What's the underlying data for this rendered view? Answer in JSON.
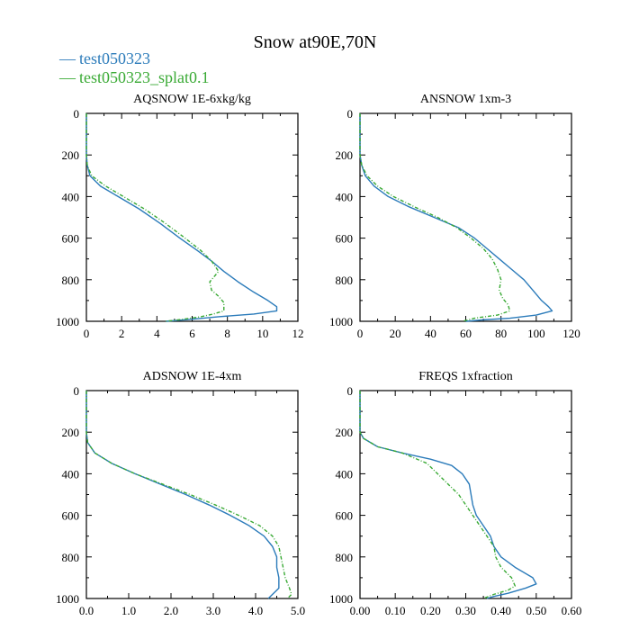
{
  "figure": {
    "title": "Snow at90E,70N",
    "legend": [
      {
        "label": "test050323",
        "color": "#2b7bba"
      },
      {
        "label": "test050323_splat0.1",
        "color": "#3aaa35"
      }
    ],
    "legend_marker": "—"
  },
  "chart_data": [
    {
      "type": "line",
      "title": "AQSNOW  1E-6xkg/kg",
      "xlabel": "",
      "ylabel": "",
      "xlim": [
        0,
        12
      ],
      "ylim": [
        1000,
        0
      ],
      "xticks": [
        0,
        2,
        4,
        6,
        8,
        10,
        12
      ],
      "xtick_labels": [
        "0",
        "2",
        "4",
        "6",
        "8",
        "10",
        "12"
      ],
      "yticks": [
        0,
        200,
        400,
        600,
        800,
        1000
      ],
      "ytick_labels": [
        "0",
        "200",
        "400",
        "600",
        "800",
        "1000"
      ],
      "series": [
        {
          "name": "test050323",
          "color": "#2b7bba",
          "dash": "",
          "points": [
            [
              0,
              0
            ],
            [
              0,
              100
            ],
            [
              0,
              200
            ],
            [
              0.05,
              250
            ],
            [
              0.2,
              300
            ],
            [
              0.8,
              350
            ],
            [
              1.8,
              400
            ],
            [
              3,
              460
            ],
            [
              4.2,
              530
            ],
            [
              5.3,
              600
            ],
            [
              6.3,
              660
            ],
            [
              7.1,
              710
            ],
            [
              7.8,
              760
            ],
            [
              8.6,
              810
            ],
            [
              9.5,
              860
            ],
            [
              10.3,
              900
            ],
            [
              10.8,
              930
            ],
            [
              10.8,
              950
            ],
            [
              9.5,
              965
            ],
            [
              7.5,
              978
            ],
            [
              6,
              990
            ],
            [
              4.5,
              1000
            ]
          ]
        },
        {
          "name": "test050323_splat0.1",
          "color": "#3aaa35",
          "dash": "4,2,1,2",
          "points": [
            [
              0,
              0
            ],
            [
              0,
              100
            ],
            [
              0,
              200
            ],
            [
              0.05,
              250
            ],
            [
              0.3,
              300
            ],
            [
              1.1,
              350
            ],
            [
              2.1,
              400
            ],
            [
              3.3,
              460
            ],
            [
              4.5,
              530
            ],
            [
              5.6,
              600
            ],
            [
              6.5,
              660
            ],
            [
              7.1,
              710
            ],
            [
              7.5,
              760
            ],
            [
              7.2,
              790
            ],
            [
              7,
              810
            ],
            [
              7.1,
              850
            ],
            [
              7.5,
              880
            ],
            [
              7.8,
              910
            ],
            [
              7.8,
              950
            ],
            [
              7.2,
              965
            ],
            [
              6.5,
              978
            ],
            [
              5.5,
              990
            ],
            [
              4.5,
              1000
            ]
          ]
        }
      ]
    },
    {
      "type": "line",
      "title": "ANSNOW  1xm-3",
      "xlabel": "",
      "ylabel": "",
      "xlim": [
        0,
        120
      ],
      "ylim": [
        1000,
        0
      ],
      "xticks": [
        0,
        20,
        40,
        60,
        80,
        100,
        120
      ],
      "xtick_labels": [
        "0",
        "20",
        "40",
        "60",
        "80",
        "100",
        "120"
      ],
      "yticks": [
        0,
        200,
        400,
        600,
        800,
        1000
      ],
      "ytick_labels": [
        "0",
        "200",
        "400",
        "600",
        "800",
        "1000"
      ],
      "series": [
        {
          "name": "test050323",
          "color": "#2b7bba",
          "dash": "",
          "points": [
            [
              0,
              0
            ],
            [
              0,
              100
            ],
            [
              0,
              200
            ],
            [
              1,
              250
            ],
            [
              3,
              300
            ],
            [
              8,
              350
            ],
            [
              16,
              400
            ],
            [
              28,
              450
            ],
            [
              42,
              500
            ],
            [
              56,
              550
            ],
            [
              65,
              600
            ],
            [
              72,
              650
            ],
            [
              79,
              700
            ],
            [
              86,
              750
            ],
            [
              93,
              800
            ],
            [
              98,
              850
            ],
            [
              103,
              900
            ],
            [
              107,
              930
            ],
            [
              109,
              950
            ],
            [
              100,
              970
            ],
            [
              85,
              985
            ],
            [
              70,
              993
            ],
            [
              60,
              1000
            ]
          ]
        },
        {
          "name": "test050323_splat0.1",
          "color": "#3aaa35",
          "dash": "4,2,1,2",
          "points": [
            [
              0,
              0
            ],
            [
              0,
              100
            ],
            [
              0,
              200
            ],
            [
              1,
              250
            ],
            [
              4,
              300
            ],
            [
              10,
              350
            ],
            [
              19,
              400
            ],
            [
              31,
              450
            ],
            [
              44,
              500
            ],
            [
              55,
              550
            ],
            [
              63,
              600
            ],
            [
              70,
              650
            ],
            [
              75,
              700
            ],
            [
              78,
              750
            ],
            [
              80,
              800
            ],
            [
              79,
              850
            ],
            [
              81,
              890
            ],
            [
              84,
              920
            ],
            [
              85,
              950
            ],
            [
              78,
              970
            ],
            [
              65,
              985
            ],
            [
              58,
              1000
            ]
          ]
        }
      ]
    },
    {
      "type": "line",
      "title": "ADSNOW  1E-4xm",
      "xlabel": "",
      "ylabel": "",
      "xlim": [
        0,
        5
      ],
      "ylim": [
        1000,
        0
      ],
      "xticks": [
        0,
        1,
        2,
        3,
        4,
        5
      ],
      "xtick_labels": [
        "0.0",
        "1.0",
        "2.0",
        "3.0",
        "4.0",
        "5.0"
      ],
      "yticks": [
        0,
        200,
        400,
        600,
        800,
        1000
      ],
      "ytick_labels": [
        "0",
        "200",
        "400",
        "600",
        "800",
        "1000"
      ],
      "series": [
        {
          "name": "test050323",
          "color": "#2b7bba",
          "dash": "",
          "points": [
            [
              0,
              0
            ],
            [
              0,
              100
            ],
            [
              0,
              200
            ],
            [
              0.03,
              250
            ],
            [
              0.2,
              300
            ],
            [
              0.6,
              350
            ],
            [
              1.15,
              400
            ],
            [
              1.75,
              450
            ],
            [
              2.35,
              500
            ],
            [
              2.9,
              550
            ],
            [
              3.4,
              600
            ],
            [
              3.85,
              650
            ],
            [
              4.2,
              700
            ],
            [
              4.4,
              750
            ],
            [
              4.5,
              800
            ],
            [
              4.5,
              850
            ],
            [
              4.55,
              900
            ],
            [
              4.55,
              950
            ],
            [
              4.4,
              980
            ],
            [
              4.3,
              1000
            ]
          ]
        },
        {
          "name": "test050323_splat0.1",
          "color": "#3aaa35",
          "dash": "4,2,1,2",
          "points": [
            [
              0,
              0
            ],
            [
              0,
              100
            ],
            [
              0,
              200
            ],
            [
              0.03,
              250
            ],
            [
              0.2,
              300
            ],
            [
              0.6,
              350
            ],
            [
              1.15,
              400
            ],
            [
              1.8,
              450
            ],
            [
              2.45,
              500
            ],
            [
              3.05,
              550
            ],
            [
              3.6,
              600
            ],
            [
              4.1,
              650
            ],
            [
              4.4,
              700
            ],
            [
              4.55,
              750
            ],
            [
              4.6,
              800
            ],
            [
              4.65,
              850
            ],
            [
              4.7,
              900
            ],
            [
              4.8,
              950
            ],
            [
              4.85,
              980
            ],
            [
              4.75,
              1000
            ]
          ]
        }
      ]
    },
    {
      "type": "line",
      "title": "FREQS  1xfraction",
      "xlabel": "",
      "ylabel": "",
      "xlim": [
        0,
        0.6
      ],
      "ylim": [
        1000,
        0
      ],
      "xticks": [
        0,
        0.1,
        0.2,
        0.3,
        0.4,
        0.5,
        0.6
      ],
      "xtick_labels": [
        "0.00",
        "0.10",
        "0.20",
        "0.30",
        "0.40",
        "0.50",
        "0.60"
      ],
      "yticks": [
        0,
        200,
        400,
        600,
        800,
        1000
      ],
      "ytick_labels": [
        "0",
        "200",
        "400",
        "600",
        "800",
        "1000"
      ],
      "series": [
        {
          "name": "test050323",
          "color": "#2b7bba",
          "dash": "",
          "points": [
            [
              0,
              0
            ],
            [
              0,
              100
            ],
            [
              0,
              200
            ],
            [
              0.01,
              230
            ],
            [
              0.05,
              270
            ],
            [
              0.12,
              300
            ],
            [
              0.2,
              330
            ],
            [
              0.26,
              360
            ],
            [
              0.29,
              400
            ],
            [
              0.31,
              450
            ],
            [
              0.315,
              500
            ],
            [
              0.32,
              550
            ],
            [
              0.33,
              600
            ],
            [
              0.35,
              650
            ],
            [
              0.37,
              700
            ],
            [
              0.38,
              750
            ],
            [
              0.4,
              800
            ],
            [
              0.44,
              850
            ],
            [
              0.49,
              900
            ],
            [
              0.5,
              930
            ],
            [
              0.47,
              950
            ],
            [
              0.42,
              975
            ],
            [
              0.38,
              990
            ],
            [
              0.36,
              1000
            ]
          ]
        },
        {
          "name": "test050323_splat0.1",
          "color": "#3aaa35",
          "dash": "4,2,1,2",
          "points": [
            [
              0,
              0
            ],
            [
              0,
              100
            ],
            [
              0,
              200
            ],
            [
              0.01,
              230
            ],
            [
              0.05,
              270
            ],
            [
              0.12,
              300
            ],
            [
              0.19,
              350
            ],
            [
              0.22,
              400
            ],
            [
              0.25,
              450
            ],
            [
              0.28,
              500
            ],
            [
              0.3,
              550
            ],
            [
              0.32,
              600
            ],
            [
              0.34,
              650
            ],
            [
              0.36,
              700
            ],
            [
              0.38,
              750
            ],
            [
              0.385,
              800
            ],
            [
              0.4,
              850
            ],
            [
              0.43,
              900
            ],
            [
              0.44,
              940
            ],
            [
              0.42,
              960
            ],
            [
              0.38,
              980
            ],
            [
              0.35,
              1000
            ]
          ]
        }
      ]
    }
  ]
}
